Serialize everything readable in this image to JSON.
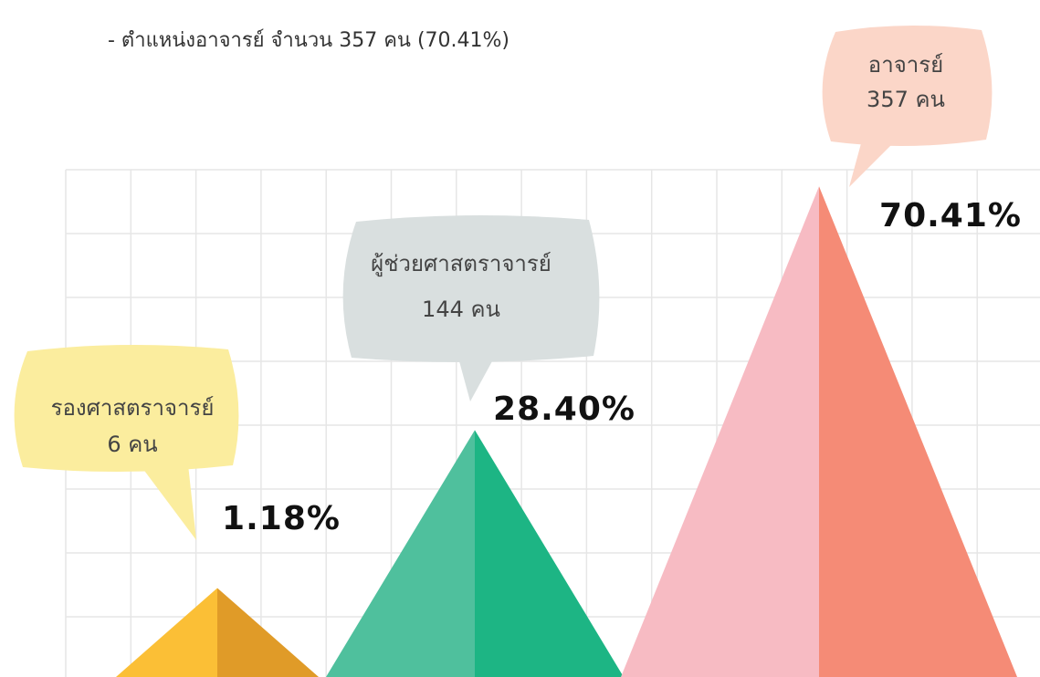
{
  "subtitle": "- ตำแหน่งอาจารย์ จำนวน 357 คน (70.41%)",
  "chart_data": {
    "type": "triangle",
    "categories": [
      "รองศาสตราจารย์",
      "ผู้ช่วยศาสตราจารย์",
      "อาจารย์"
    ],
    "count_labels": [
      "6 คน",
      "144 คน",
      "357 คน"
    ],
    "values": [
      1.18,
      28.4,
      70.41
    ],
    "value_labels": [
      "1.18%",
      "28.40%",
      "70.41%"
    ],
    "colors_left": [
      "#fbbf36",
      "#4fc09d",
      "#f7bbc3"
    ],
    "colors_right": [
      "#e09b28",
      "#1db584",
      "#f58b76"
    ],
    "bubble_colors": [
      "#fbed9e",
      "#d9dfdf",
      "#fbd6c8"
    ]
  }
}
